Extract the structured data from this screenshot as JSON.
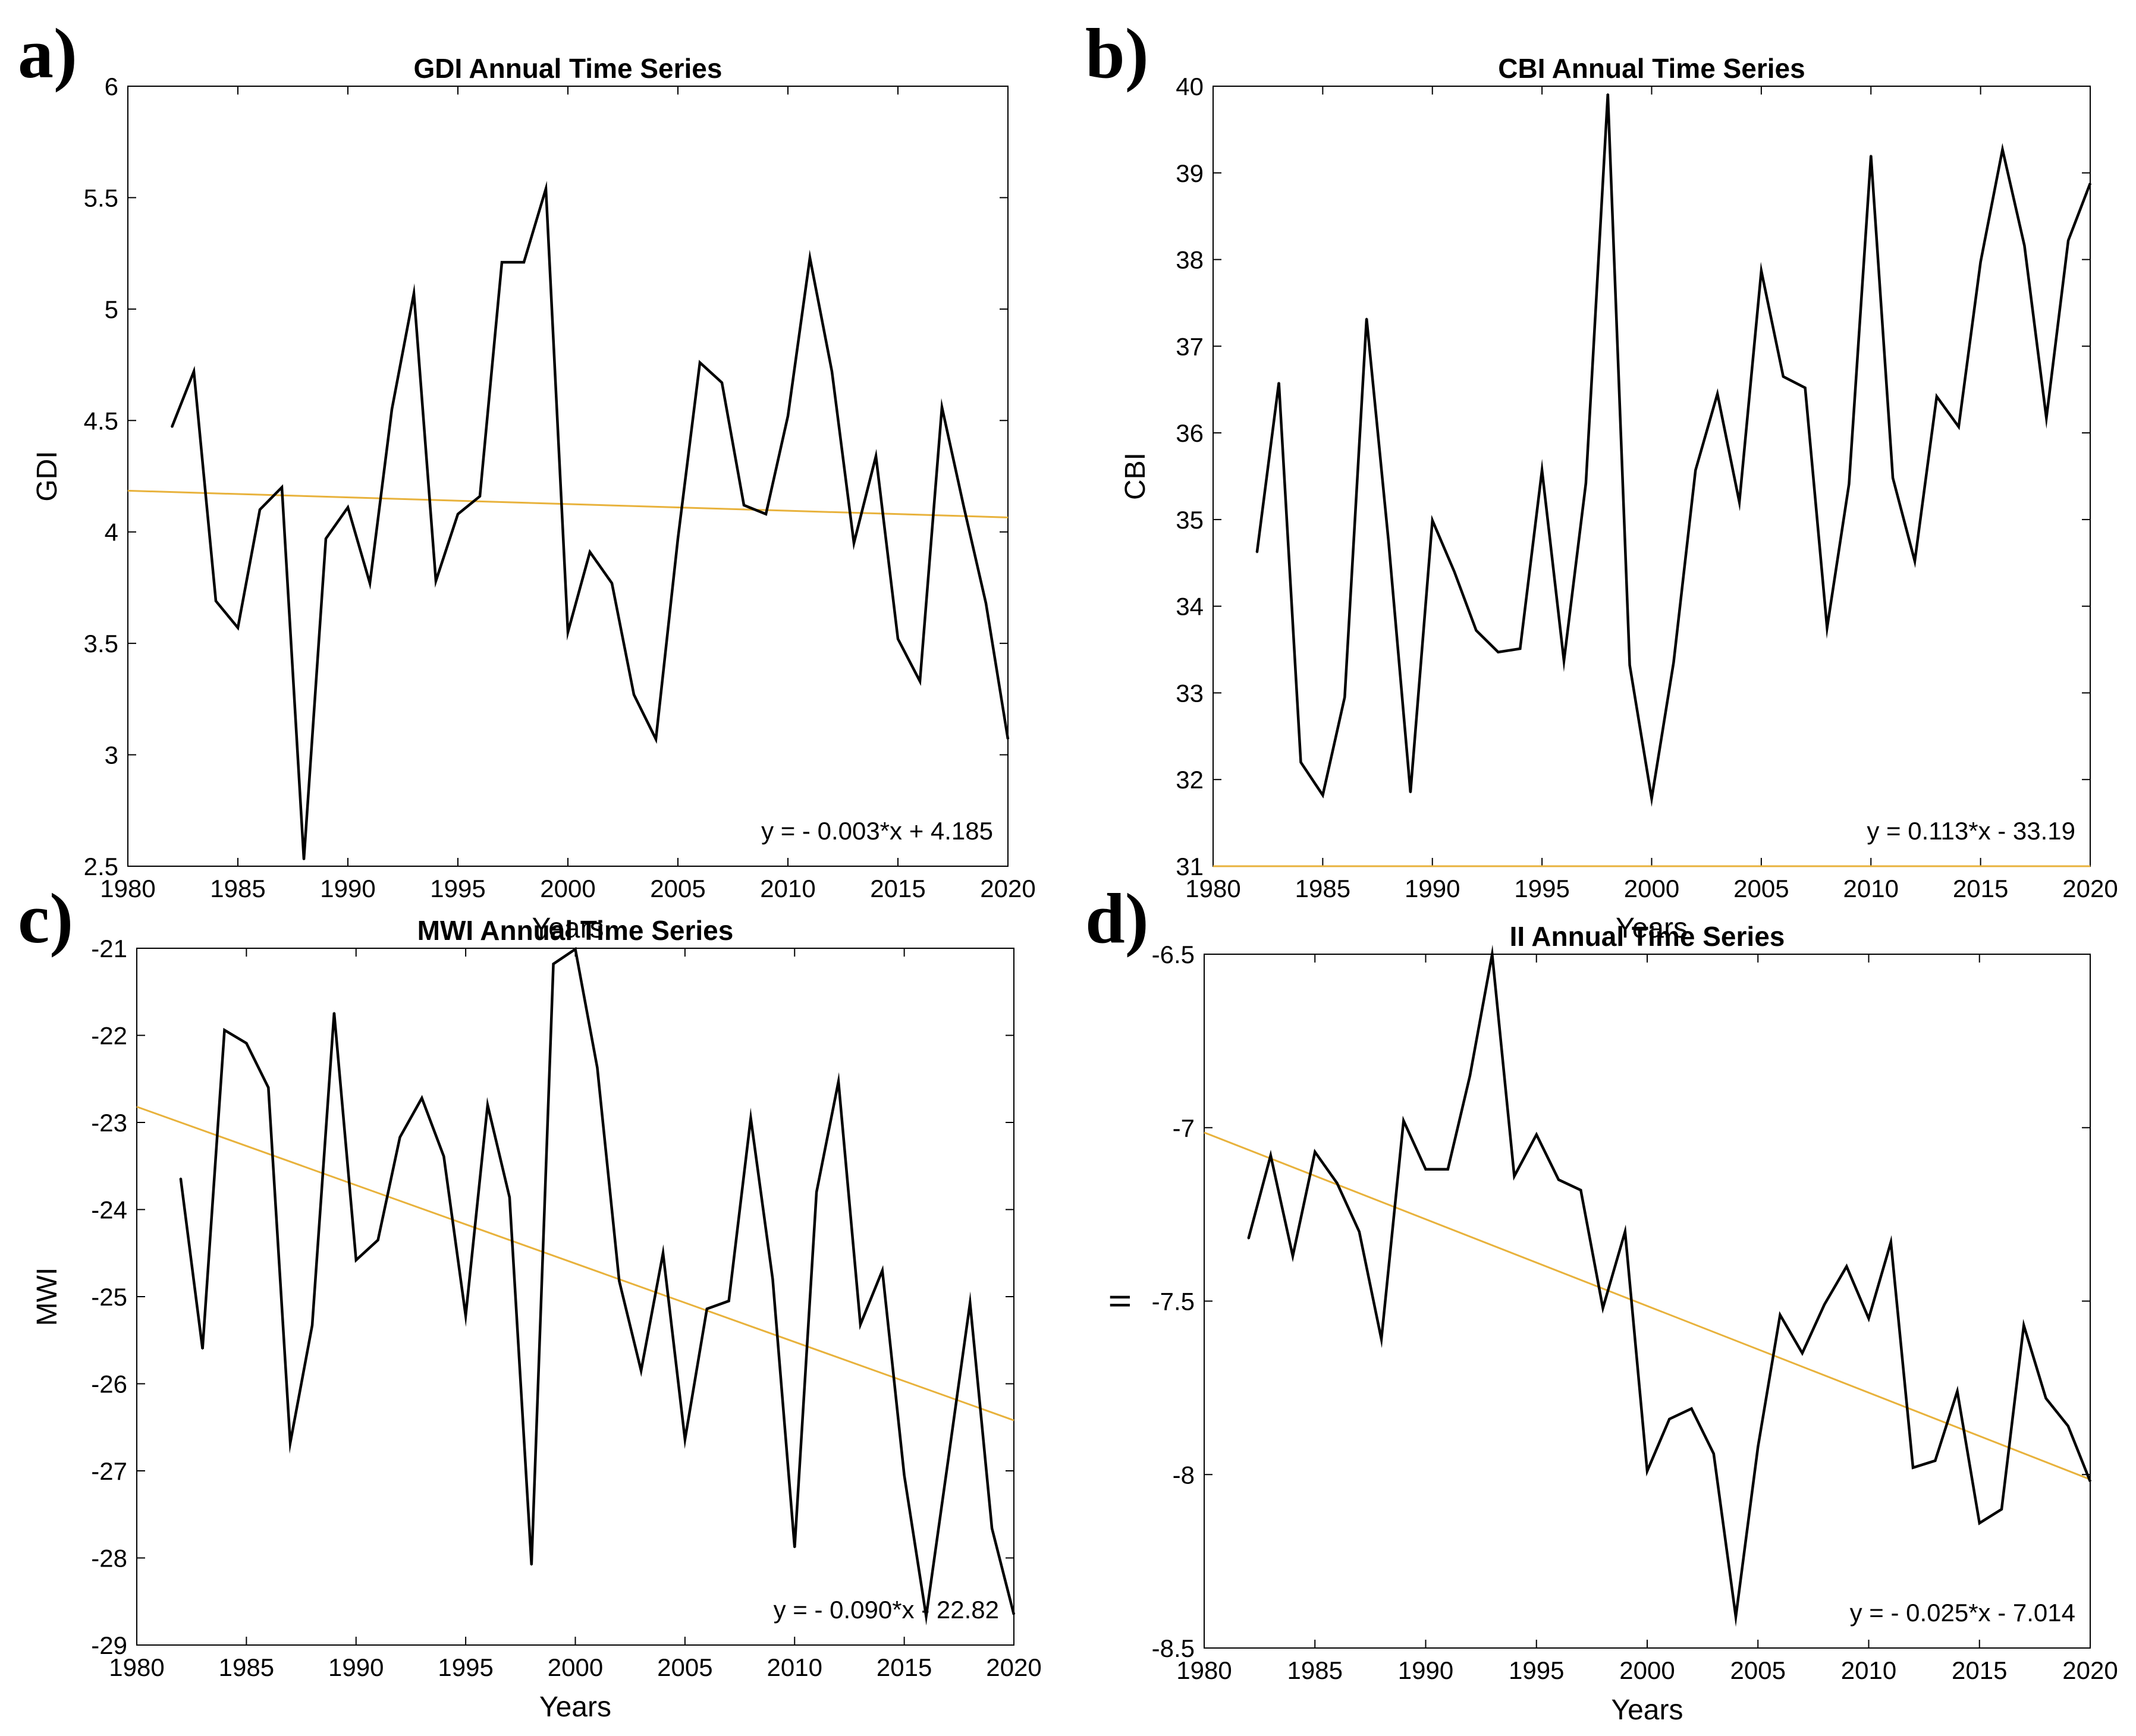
{
  "colors": {
    "series": "#000000",
    "trend": "#E8B23C",
    "axis": "#000000",
    "background": "#ffffff"
  },
  "chart_data": [
    {
      "type": "line",
      "panel_label": "a)",
      "title": "GDI Annual Time Series",
      "xlabel": "Years",
      "ylabel": "GDI",
      "xlim": [
        1980,
        2020
      ],
      "ylim": [
        2.5,
        6
      ],
      "xticks": [
        1980,
        1985,
        1990,
        1995,
        2000,
        2005,
        2010,
        2015,
        2020
      ],
      "yticks": [
        2.5,
        3,
        3.5,
        4,
        4.5,
        5,
        5.5,
        6
      ],
      "ytick_labels": [
        "2.5",
        "3",
        "3.5",
        "4",
        "4.5",
        "5",
        "5.5",
        "6"
      ],
      "grid": false,
      "x": [
        1982,
        1983,
        1984,
        1985,
        1986,
        1987,
        1988,
        1989,
        1990,
        1991,
        1992,
        1993,
        1994,
        1995,
        1996,
        1997,
        1998,
        1999,
        2000,
        2001,
        2002,
        2003,
        2004,
        2005,
        2006,
        2007,
        2008,
        2009,
        2010,
        2011,
        2012,
        2013,
        2014,
        2015,
        2016,
        2017,
        2018,
        2019,
        2020
      ],
      "series": [
        {
          "name": "GDI",
          "values": [
            4.47,
            4.72,
            3.69,
            3.57,
            4.1,
            4.2,
            2.53,
            3.97,
            4.11,
            3.77,
            4.55,
            5.07,
            3.78,
            4.08,
            4.16,
            5.21,
            5.21,
            5.54,
            3.55,
            3.91,
            3.77,
            3.27,
            3.07,
            3.97,
            4.76,
            4.67,
            4.12,
            4.08,
            4.52,
            5.23,
            4.72,
            3.95,
            4.34,
            3.52,
            3.33,
            4.56,
            4.11,
            3.68,
            3.07
          ]
        }
      ],
      "trend": {
        "slope": -0.003,
        "intercept": 4.185,
        "equation": "y = - 0.003*x + 4.185"
      }
    },
    {
      "type": "line",
      "panel_label": "b)",
      "title": "CBI Annual Time Series",
      "xlabel": "Years",
      "ylabel": "CBI",
      "xlim": [
        1980,
        2020
      ],
      "ylim": [
        31,
        40
      ],
      "xticks": [
        1980,
        1985,
        1990,
        1995,
        2000,
        2005,
        2010,
        2015,
        2020
      ],
      "yticks": [
        31,
        32,
        33,
        34,
        35,
        36,
        37,
        38,
        39,
        40
      ],
      "ytick_labels": [
        "31",
        "32",
        "33",
        "34",
        "35",
        "36",
        "37",
        "38",
        "39",
        "40"
      ],
      "grid": false,
      "x": [
        1982,
        1983,
        1984,
        1985,
        1986,
        1987,
        1988,
        1989,
        1990,
        1991,
        1992,
        1993,
        1994,
        1995,
        1996,
        1997,
        1998,
        1999,
        2000,
        2001,
        2002,
        2003,
        2004,
        2005,
        2006,
        2007,
        2008,
        2009,
        2010,
        2011,
        2012,
        2013,
        2014,
        2015,
        2016,
        2017,
        2018,
        2019,
        2020
      ],
      "series": [
        {
          "name": "CBI",
          "values": [
            34.62,
            36.58,
            32.2,
            31.82,
            32.95,
            37.32,
            34.75,
            31.85,
            34.99,
            34.4,
            33.72,
            33.47,
            33.51,
            35.57,
            33.37,
            35.42,
            39.91,
            33.32,
            31.78,
            33.35,
            35.57,
            36.45,
            35.2,
            37.87,
            36.65,
            36.52,
            33.75,
            35.41,
            39.2,
            35.48,
            34.52,
            36.42,
            36.07,
            37.97,
            39.27,
            38.16,
            36.17,
            38.22,
            38.88
          ]
        }
      ],
      "trend": {
        "slope": 0.113,
        "intercept": -33.19,
        "equation": "y = 0.113*x - 33.19"
      }
    },
    {
      "type": "line",
      "panel_label": "c)",
      "title": "MWI Annual Time Series",
      "xlabel": "Years",
      "ylabel": "MWI",
      "xlim": [
        1980,
        2020
      ],
      "ylim": [
        -29,
        -21
      ],
      "xticks": [
        1980,
        1985,
        1990,
        1995,
        2000,
        2005,
        2010,
        2015,
        2020
      ],
      "yticks": [
        -29,
        -28,
        -27,
        -26,
        -25,
        -24,
        -23,
        -22,
        -21
      ],
      "ytick_labels": [
        "-29",
        "-28",
        "-27",
        "-26",
        "-25",
        "-24",
        "-23",
        "-22",
        "-21"
      ],
      "grid": false,
      "x": [
        1982,
        1983,
        1984,
        1985,
        1986,
        1987,
        1988,
        1989,
        1990,
        1991,
        1992,
        1993,
        1994,
        1995,
        1996,
        1997,
        1998,
        1999,
        2000,
        2001,
        2002,
        2003,
        2004,
        2005,
        2006,
        2007,
        2008,
        2009,
        2010,
        2011,
        2012,
        2013,
        2014,
        2015,
        2016,
        2017,
        2018,
        2019,
        2020
      ],
      "series": [
        {
          "name": "MWI",
          "values": [
            -23.64,
            -25.6,
            -21.94,
            -22.09,
            -22.6,
            -26.68,
            -25.33,
            -21.74,
            -24.58,
            -24.35,
            -23.17,
            -22.72,
            -23.39,
            -25.22,
            -22.8,
            -23.86,
            -28.08,
            -21.18,
            -21.01,
            -22.37,
            -24.82,
            -25.85,
            -24.5,
            -26.64,
            -25.14,
            -25.05,
            -22.95,
            -24.8,
            -27.88,
            -23.8,
            -22.53,
            -25.32,
            -24.7,
            -27.05,
            -28.67,
            -26.88,
            -25.07,
            -27.66,
            -28.65
          ]
        }
      ],
      "trend": {
        "slope": -0.09,
        "intercept": -22.82,
        "equation": "y = - 0.090*x - 22.82"
      }
    },
    {
      "type": "line",
      "panel_label": "d)",
      "title": "II Annual Time Series",
      "xlabel": "Years",
      "ylabel": "II",
      "xlim": [
        1980,
        2020
      ],
      "ylim": [
        -8.5,
        -6.5
      ],
      "xticks": [
        1980,
        1985,
        1990,
        1995,
        2000,
        2005,
        2010,
        2015,
        2020
      ],
      "yticks": [
        -8.5,
        -8,
        -7.5,
        -7,
        -6.5
      ],
      "ytick_labels": [
        "-8.5",
        "-8",
        "-7.5",
        "-7",
        "-6.5"
      ],
      "grid": false,
      "x": [
        1982,
        1983,
        1984,
        1985,
        1986,
        1987,
        1988,
        1989,
        1990,
        1991,
        1992,
        1993,
        1994,
        1995,
        1996,
        1997,
        1998,
        1999,
        2000,
        2001,
        2002,
        2003,
        2004,
        2005,
        2006,
        2007,
        2008,
        2009,
        2010,
        2011,
        2012,
        2013,
        2014,
        2015,
        2016,
        2017,
        2018,
        2019,
        2020
      ],
      "series": [
        {
          "name": "II",
          "values": [
            -7.32,
            -7.08,
            -7.37,
            -7.07,
            -7.16,
            -7.3,
            -7.61,
            -6.98,
            -7.12,
            -7.12,
            -6.85,
            -6.49,
            -7.14,
            -7.02,
            -7.15,
            -7.18,
            -7.52,
            -7.3,
            -7.99,
            -7.84,
            -7.81,
            -7.94,
            -8.41,
            -7.92,
            -7.54,
            -7.65,
            -7.51,
            -7.4,
            -7.55,
            -7.33,
            -7.98,
            -7.96,
            -7.76,
            -8.14,
            -8.1,
            -7.57,
            -7.78,
            -7.86,
            -8.02
          ]
        }
      ],
      "trend": {
        "slope": -0.025,
        "intercept": -7.014,
        "equation": "y = - 0.025*x - 7.014"
      }
    }
  ]
}
